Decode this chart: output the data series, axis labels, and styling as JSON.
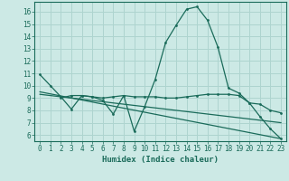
{
  "title": "",
  "xlabel": "Humidex (Indice chaleur)",
  "ylabel": "",
  "background_color": "#cce9e5",
  "grid_color": "#aed4cf",
  "line_color": "#1a6b5a",
  "xlim": [
    -0.5,
    23.5
  ],
  "ylim": [
    5.5,
    16.8
  ],
  "xticks": [
    0,
    1,
    2,
    3,
    4,
    5,
    6,
    7,
    8,
    9,
    10,
    11,
    12,
    13,
    14,
    15,
    16,
    17,
    18,
    19,
    20,
    21,
    22,
    23
  ],
  "yticks": [
    6,
    7,
    8,
    9,
    10,
    11,
    12,
    13,
    14,
    15,
    16
  ],
  "curve1_x": [
    0,
    1,
    2,
    3,
    4,
    5,
    6,
    7,
    8,
    9,
    10,
    11,
    12,
    13,
    14,
    15,
    16,
    17,
    18,
    19,
    20,
    21,
    22,
    23
  ],
  "curve1_y": [
    10.9,
    10.0,
    9.1,
    8.1,
    9.2,
    9.1,
    8.8,
    7.7,
    9.2,
    6.3,
    8.3,
    10.5,
    13.5,
    14.9,
    16.2,
    16.4,
    15.3,
    13.1,
    9.8,
    9.4,
    8.6,
    7.5,
    6.5,
    5.7
  ],
  "curve2_x": [
    0,
    1,
    2,
    3,
    4,
    5,
    6,
    7,
    8,
    9,
    10,
    11,
    12,
    13,
    14,
    15,
    16,
    17,
    18,
    19,
    20,
    21,
    22,
    23
  ],
  "curve2_y": [
    9.3,
    9.2,
    9.1,
    9.0,
    8.9,
    8.8,
    8.7,
    8.6,
    8.5,
    8.4,
    8.3,
    8.2,
    8.1,
    8.0,
    7.9,
    7.8,
    7.7,
    7.6,
    7.5,
    7.4,
    7.3,
    7.2,
    7.1,
    7.0
  ],
  "curve3_x": [
    0,
    23
  ],
  "curve3_y": [
    9.5,
    5.7
  ],
  "curve4_x": [
    2,
    3,
    4,
    5,
    6,
    7,
    8,
    9,
    10,
    11,
    12,
    13,
    14,
    15,
    16,
    17,
    18,
    19,
    20,
    21,
    22,
    23
  ],
  "curve4_y": [
    9.0,
    9.2,
    9.2,
    9.1,
    9.0,
    9.1,
    9.2,
    9.1,
    9.1,
    9.1,
    9.0,
    9.0,
    9.1,
    9.2,
    9.3,
    9.3,
    9.3,
    9.2,
    8.6,
    8.5,
    8.0,
    7.8
  ]
}
